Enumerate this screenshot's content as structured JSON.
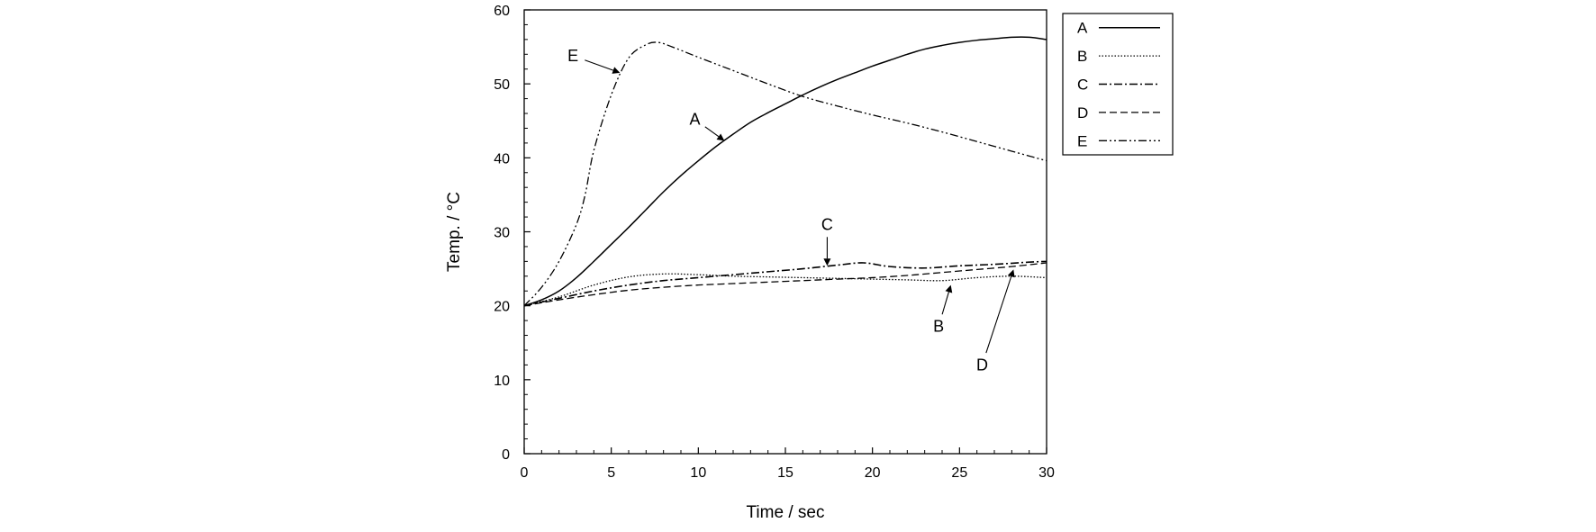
{
  "chart_data": {
    "type": "line",
    "title": "",
    "xlabel": "Time / sec",
    "ylabel": "Temp. / °C",
    "xlim": [
      0,
      30
    ],
    "ylim": [
      0,
      60
    ],
    "xticks": [
      0,
      5,
      10,
      15,
      20,
      25,
      30
    ],
    "yticks": [
      0,
      10,
      20,
      30,
      40,
      50,
      60
    ],
    "grid": false,
    "legend_position": "right",
    "series": [
      {
        "name": "A",
        "style": "solid",
        "x": [
          0,
          1,
          2,
          3,
          4,
          5,
          6,
          7,
          8,
          9,
          10,
          11,
          12,
          13,
          14,
          15,
          16,
          17,
          18,
          19,
          20,
          21,
          22,
          23,
          24,
          25,
          26,
          27,
          28,
          29,
          30
        ],
        "y": [
          20,
          20.8,
          22,
          23.8,
          26,
          28.3,
          30.6,
          33,
          35.4,
          37.6,
          39.6,
          41.5,
          43.2,
          44.8,
          46.1,
          47.3,
          48.5,
          49.6,
          50.6,
          51.5,
          52.4,
          53.2,
          54,
          54.7,
          55.2,
          55.6,
          55.9,
          56.1,
          56.3,
          56.3,
          56
        ]
      },
      {
        "name": "B",
        "style": "dotted",
        "x": [
          0,
          2,
          4,
          6,
          8,
          10,
          12,
          14,
          16,
          18,
          20,
          22,
          24,
          26,
          28,
          30
        ],
        "y": [
          20,
          21.2,
          22.8,
          23.9,
          24.3,
          24.2,
          24,
          23.9,
          23.8,
          23.7,
          23.6,
          23.5,
          23.4,
          23.8,
          24,
          23.8
        ]
      },
      {
        "name": "C",
        "style": "dash-dot",
        "x": [
          0,
          2,
          4,
          6,
          8,
          10,
          12,
          14,
          16,
          18,
          19.5,
          21,
          23,
          25,
          27,
          29,
          30
        ],
        "y": [
          20,
          21,
          22,
          22.8,
          23.4,
          23.8,
          24.2,
          24.6,
          25,
          25.5,
          25.8,
          25.3,
          25.1,
          25.4,
          25.6,
          25.9,
          26
        ]
      },
      {
        "name": "D",
        "style": "dashed",
        "x": [
          0,
          2,
          4,
          6,
          8,
          10,
          12,
          14,
          16,
          18,
          20,
          22,
          24,
          26,
          28,
          30
        ],
        "y": [
          20,
          20.8,
          21.5,
          22.1,
          22.5,
          22.8,
          23,
          23.2,
          23.4,
          23.6,
          23.8,
          24.1,
          24.5,
          24.9,
          25.3,
          25.8
        ]
      },
      {
        "name": "E",
        "style": "dash-dot-dot",
        "x": [
          0,
          1,
          2,
          3,
          3.5,
          4,
          5,
          6,
          7,
          7.7,
          8.5,
          10,
          12,
          14,
          16,
          18,
          20,
          22,
          24,
          26,
          28,
          30
        ],
        "y": [
          20,
          22.5,
          26,
          31,
          35,
          41,
          48.5,
          53.5,
          55.3,
          55.6,
          55,
          53.6,
          51.8,
          50,
          48.3,
          47,
          45.8,
          44.7,
          43.5,
          42.2,
          40.9,
          39.6
        ]
      }
    ],
    "annotations": [
      {
        "label": "E",
        "text_x": 2.8,
        "text_y": 53.8,
        "arrow_to_x": 5.5,
        "arrow_to_y": 51.5
      },
      {
        "label": "A",
        "text_x": 9.8,
        "text_y": 45.2,
        "arrow_to_x": 11.5,
        "arrow_to_y": 42.3
      },
      {
        "label": "C",
        "text_x": 17.4,
        "text_y": 31,
        "arrow_to_x": 17.4,
        "arrow_to_y": 25.4
      },
      {
        "label": "B",
        "text_x": 23.8,
        "text_y": 17.2,
        "arrow_to_x": 24.5,
        "arrow_to_y": 22.8
      },
      {
        "label": "D",
        "text_x": 26.3,
        "text_y": 12,
        "arrow_to_x": 28.1,
        "arrow_to_y": 24.9
      }
    ]
  }
}
